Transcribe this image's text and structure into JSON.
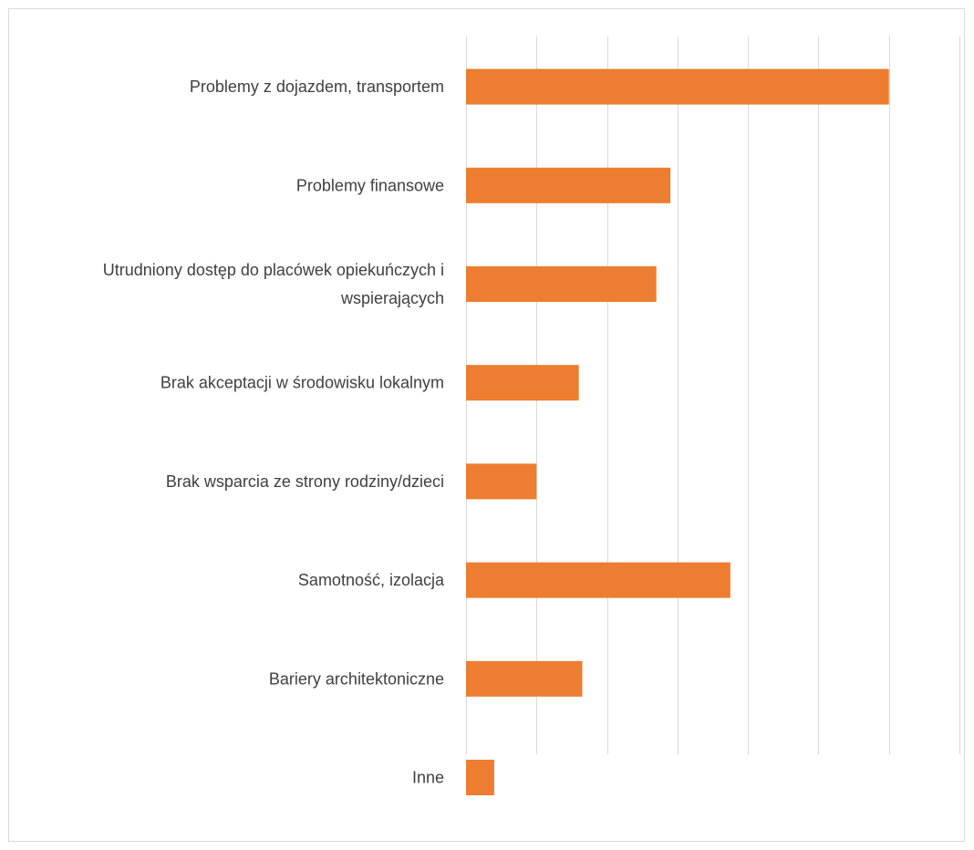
{
  "chart_data": {
    "type": "bar",
    "orientation": "horizontal",
    "categories": [
      "Problemy z dojazdem, transportem",
      "Problemy finansowe",
      "Utrudniony dostęp do placówek opiekuńczych i wspierających",
      "Brak akceptacji w środowisku lokalnym",
      "Brak wsparcia ze strony rodziny/dzieci",
      "Samotność, izolacja",
      "Bariery architektoniczne",
      "Inne"
    ],
    "category_label_lines": [
      [
        "Problemy z dojazdem, transportem"
      ],
      [
        "Problemy finansowe"
      ],
      [
        "Utrudniony dostęp do placówek opiekuńczych i",
        "wspierających"
      ],
      [
        "Brak akceptacji w środowisku lokalnym"
      ],
      [
        "Brak wsparcia ze strony rodziny/dzieci"
      ],
      [
        "Samotność, izolacja"
      ],
      [
        "Bariery architektoniczne"
      ],
      [
        "Inne"
      ]
    ],
    "values": [
      6.0,
      2.9,
      2.7,
      1.6,
      1.0,
      3.75,
      1.65,
      0.4
    ],
    "xlim": [
      0,
      7
    ],
    "x_gridlines": [
      0,
      1,
      2,
      3,
      4,
      5,
      6,
      7
    ],
    "grid": true,
    "tick_labels_shown": false,
    "bar_color": "#ED7D31",
    "grid_color": "#D9D9D9",
    "title": "",
    "xlabel": "",
    "ylabel": ""
  }
}
